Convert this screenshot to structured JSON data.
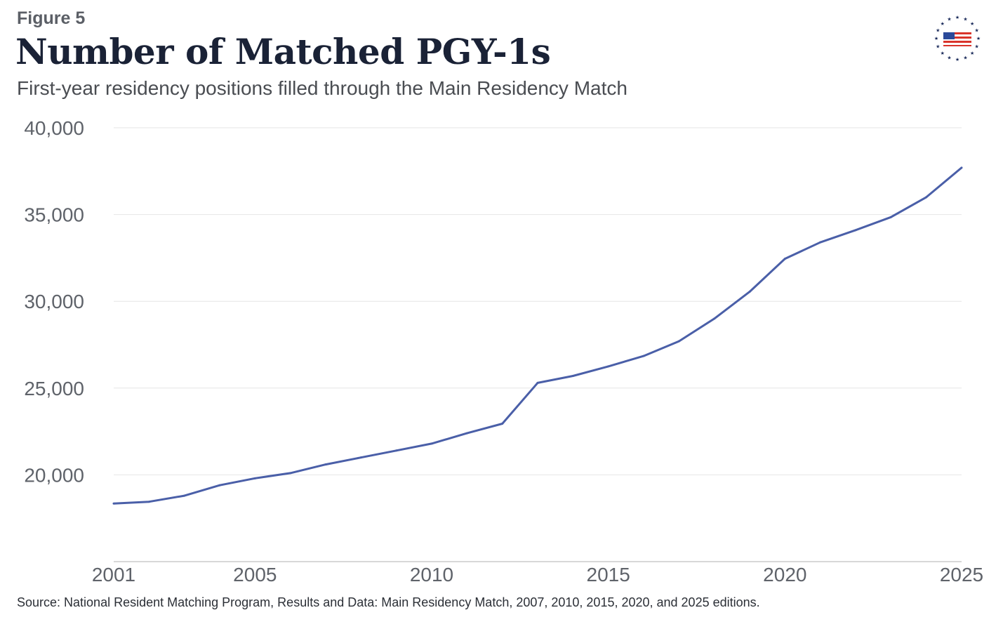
{
  "header": {
    "figure_label": "Figure 5",
    "title": "Number of Matched PGY-1s",
    "subtitle": "First-year residency positions filled through the Main Residency Match"
  },
  "footer": {
    "source": "Source: National Resident Matching Program, Results and Data: Main Residency Match, 2007, 2010, 2015, 2020, and 2025 editions."
  },
  "logo": {
    "icon": "flag-stars-icon",
    "colors": {
      "stars": "#1a2a5a",
      "stripes": "#d9342b",
      "canton": "#2b4a9a"
    }
  },
  "colors": {
    "line": "#4a5fa8",
    "grid": "#e6e6e6",
    "axis": "#cccccc"
  },
  "chart_data": {
    "type": "line",
    "title": "Number of Matched PGY-1s",
    "subtitle": "First-year residency positions filled through the Main Residency Match",
    "xlabel": "",
    "ylabel": "",
    "xlim": [
      2001,
      2025
    ],
    "ylim": [
      15000,
      40000
    ],
    "x_ticks": [
      2001,
      2005,
      2010,
      2015,
      2020,
      2025
    ],
    "y_ticks": [
      20000,
      25000,
      30000,
      35000,
      40000
    ],
    "x_tick_labels": [
      "2001",
      "2005",
      "2010",
      "2015",
      "2020",
      "2025"
    ],
    "y_tick_labels": [
      "20,000",
      "25,000",
      "30,000",
      "35,000",
      "40,000"
    ],
    "grid": true,
    "legend": "none",
    "series": [
      {
        "x": [
          2001,
          2002,
          2003,
          2004,
          2005,
          2006,
          2007,
          2008,
          2009,
          2010,
          2011,
          2012,
          2013,
          2014,
          2015,
          2016,
          2017,
          2018,
          2019,
          2020,
          2021,
          2022,
          2023,
          2024,
          2025
        ],
        "values": [
          18350,
          18450,
          18800,
          19400,
          19800,
          20100,
          20600,
          21000,
          21400,
          21800,
          22400,
          22950,
          25300,
          25700,
          26250,
          26850,
          27700,
          29000,
          30550,
          32450,
          33400,
          34100,
          34850,
          36000,
          37700
        ]
      }
    ]
  }
}
